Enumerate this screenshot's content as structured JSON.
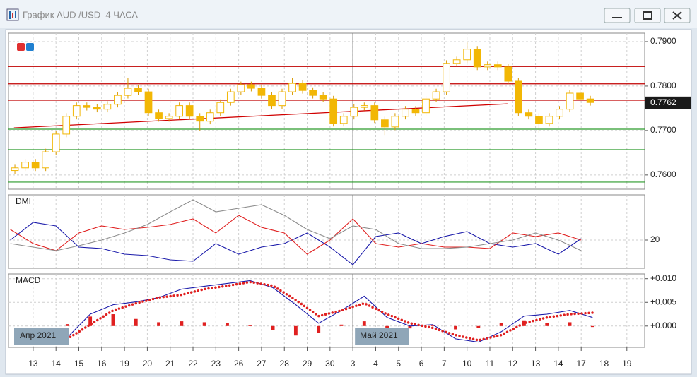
{
  "window": {
    "title": "График AUD /USD  4 ЧАСА"
  },
  "chart_data": [
    {
      "type": "candlestick",
      "xlim": [
        -1.08,
        26.78
      ],
      "ylim": [
        0.7568,
        0.7919
      ],
      "yticks": [
        {
          "value": 0.76,
          "label": "0.7600"
        },
        {
          "value": 0.77,
          "label": "0.7700"
        },
        {
          "value": 0.78,
          "label": "0.7800"
        },
        {
          "value": 0.79,
          "label": "0.7900"
        }
      ],
      "grid": true,
      "color": "#f2b705",
      "x": [
        -0.8,
        -0.35,
        0.1,
        0.55,
        1,
        1.45,
        1.9,
        2.35,
        2.8,
        3.25,
        3.7,
        4.15,
        4.6,
        5.05,
        5.5,
        5.95,
        6.4,
        6.85,
        7.3,
        7.75,
        8.2,
        8.65,
        9.1,
        9.55,
        10,
        10.45,
        10.9,
        11.35,
        11.8,
        12.25,
        12.7,
        13.15,
        13.6,
        14.05,
        14.5,
        14.95,
        15.4,
        15.85,
        16.3,
        16.75,
        17.2,
        17.65,
        18.1,
        18.55,
        19,
        19.45,
        19.9,
        20.35,
        20.8,
        21.25,
        21.7,
        22.15,
        22.6,
        23.05,
        23.5,
        23.95,
        24.4
      ],
      "open": [
        0.761,
        0.7616,
        0.7629,
        0.7616,
        0.7652,
        0.7692,
        0.7732,
        0.7756,
        0.7752,
        0.7748,
        0.7759,
        0.7779,
        0.7795,
        0.7787,
        0.774,
        0.7727,
        0.7732,
        0.7756,
        0.7732,
        0.7721,
        0.774,
        0.7763,
        0.7787,
        0.7803,
        0.7795,
        0.7779,
        0.7756,
        0.7787,
        0.7806,
        0.779,
        0.7779,
        0.7771,
        0.7716,
        0.7732,
        0.7752,
        0.7756,
        0.7724,
        0.7708,
        0.7732,
        0.7748,
        0.774,
        0.7771,
        0.7787,
        0.7851,
        0.7859,
        0.7883,
        0.7843,
        0.7848,
        0.7843,
        0.7811,
        0.774,
        0.7732,
        0.7716,
        0.7732,
        0.7748,
        0.7784,
        0.7771
      ],
      "high": [
        0.7623,
        0.7636,
        0.7636,
        0.7659,
        0.7699,
        0.7739,
        0.7763,
        0.7763,
        0.7759,
        0.7766,
        0.7786,
        0.7818,
        0.7802,
        0.7794,
        0.7747,
        0.7739,
        0.7763,
        0.7763,
        0.7739,
        0.7747,
        0.777,
        0.7794,
        0.781,
        0.781,
        0.7802,
        0.7786,
        0.7794,
        0.7818,
        0.7813,
        0.7797,
        0.7786,
        0.7778,
        0.7739,
        0.7759,
        0.7763,
        0.7763,
        0.7731,
        0.7739,
        0.7755,
        0.7755,
        0.7778,
        0.7794,
        0.7858,
        0.7866,
        0.7898,
        0.789,
        0.7855,
        0.7855,
        0.785,
        0.7818,
        0.7747,
        0.7739,
        0.7739,
        0.7755,
        0.7791,
        0.7791,
        0.7778
      ],
      "low": [
        0.7603,
        0.7609,
        0.7609,
        0.7609,
        0.7645,
        0.7685,
        0.7725,
        0.7745,
        0.7741,
        0.7741,
        0.7752,
        0.7772,
        0.778,
        0.7733,
        0.772,
        0.772,
        0.7725,
        0.7725,
        0.77,
        0.7714,
        0.7733,
        0.7756,
        0.778,
        0.7788,
        0.7772,
        0.7749,
        0.7749,
        0.778,
        0.7783,
        0.7772,
        0.7764,
        0.7709,
        0.7709,
        0.7725,
        0.7745,
        0.7717,
        0.769,
        0.7701,
        0.7725,
        0.7733,
        0.7733,
        0.7764,
        0.778,
        0.7844,
        0.7852,
        0.7836,
        0.7836,
        0.7836,
        0.7804,
        0.7733,
        0.7725,
        0.7695,
        0.7709,
        0.7725,
        0.7741,
        0.7764,
        0.7756
      ],
      "close": [
        0.7616,
        0.7629,
        0.7616,
        0.7652,
        0.7692,
        0.7732,
        0.7756,
        0.7752,
        0.7748,
        0.7759,
        0.7779,
        0.7795,
        0.7787,
        0.774,
        0.7727,
        0.7732,
        0.7756,
        0.7732,
        0.7721,
        0.774,
        0.7763,
        0.7787,
        0.7803,
        0.7795,
        0.7779,
        0.7756,
        0.7787,
        0.7806,
        0.779,
        0.7779,
        0.7771,
        0.7716,
        0.7732,
        0.7752,
        0.7756,
        0.7724,
        0.7708,
        0.7732,
        0.7748,
        0.774,
        0.7771,
        0.7787,
        0.7851,
        0.7859,
        0.7883,
        0.7843,
        0.7848,
        0.7843,
        0.7811,
        0.774,
        0.7732,
        0.7716,
        0.7732,
        0.7748,
        0.7784,
        0.7771,
        0.7763
      ],
      "hlines": [
        {
          "value": 0.7844,
          "color": "#c00000"
        },
        {
          "value": 0.7805,
          "color": "#c00000"
        },
        {
          "value": 0.7768,
          "color": "#c00000"
        },
        {
          "value": 0.7703,
          "color": "#2a9a2a"
        },
        {
          "value": 0.7657,
          "color": "#2a9a2a"
        },
        {
          "value": 0.7584,
          "color": "#2a9a2a"
        }
      ],
      "trendline": {
        "x": [
          -0.84,
          20.77
        ],
        "y": [
          0.7706,
          0.776
        ],
        "color": "#d00000"
      },
      "last_price": 0.7762
    },
    {
      "type": "line",
      "title": "DMI",
      "xlim": [
        -1.08,
        26.78
      ],
      "ylim": [
        0,
        52
      ],
      "yticks": [
        20
      ],
      "grid": true,
      "x": [
        -1,
        0,
        1,
        2,
        3,
        4,
        5,
        6,
        7,
        8,
        9,
        10,
        11,
        12,
        13,
        14,
        15,
        16,
        17,
        18,
        19,
        20,
        21,
        22,
        23,
        24
      ],
      "series": [
        {
          "color": "#1a1aaa",
          "values": [
            20,
            32.5,
            30,
            15,
            14,
            10,
            9,
            6,
            5,
            17.5,
            10,
            15,
            17.5,
            25,
            15,
            2.5,
            22.5,
            25,
            17.5,
            22.5,
            26,
            17.5,
            15,
            17.5,
            10,
            21
          ]
        },
        {
          "color": "#e02020",
          "values": [
            27.5,
            17.5,
            12.5,
            25,
            30,
            27.5,
            29,
            31,
            35,
            25,
            37.5,
            29,
            25,
            10,
            20,
            35,
            17.5,
            15,
            17.5,
            15,
            15,
            14,
            25,
            22.5,
            25,
            20
          ]
        },
        {
          "color": "#8c8c8c",
          "values": [
            17.5,
            15,
            12.5,
            16,
            20,
            25,
            31,
            40,
            48.5,
            40,
            42.5,
            45,
            37.5,
            27.5,
            21,
            30,
            27.5,
            17.5,
            14,
            14,
            15,
            17.5,
            20,
            25,
            20,
            12.5
          ]
        }
      ]
    },
    {
      "type": "macd",
      "title": "MACD",
      "xlim": [
        -1.08,
        26.78
      ],
      "ylim": [
        -0.0045,
        0.011
      ],
      "yticks": [
        {
          "value": 0,
          "label": "+0.000"
        },
        {
          "value": 0.005,
          "label": "+0.005"
        },
        {
          "value": 0.01,
          "label": "+0.010"
        }
      ],
      "grid": true,
      "xticks": [
        {
          "value": 0,
          "label": "13"
        },
        {
          "value": 1,
          "label": "14"
        },
        {
          "value": 2,
          "label": "15"
        },
        {
          "value": 3,
          "label": "16"
        },
        {
          "value": 4,
          "label": "19"
        },
        {
          "value": 5,
          "label": "20"
        },
        {
          "value": 6,
          "label": "21"
        },
        {
          "value": 7,
          "label": "22"
        },
        {
          "value": 8,
          "label": "23"
        },
        {
          "value": 9,
          "label": "26"
        },
        {
          "value": 10,
          "label": "27"
        },
        {
          "value": 11,
          "label": "28"
        },
        {
          "value": 12,
          "label": "29"
        },
        {
          "value": 13,
          "label": "30"
        },
        {
          "value": 14,
          "label": "3"
        },
        {
          "value": 15,
          "label": "4"
        },
        {
          "value": 16,
          "label": "5"
        },
        {
          "value": 17,
          "label": "6"
        },
        {
          "value": 18,
          "label": "7"
        },
        {
          "value": 19,
          "label": "10"
        },
        {
          "value": 20,
          "label": "11"
        },
        {
          "value": 21,
          "label": "12"
        },
        {
          "value": 22,
          "label": "13"
        },
        {
          "value": 23,
          "label": "14"
        },
        {
          "value": 24,
          "label": "17"
        },
        {
          "value": 25,
          "label": "18"
        },
        {
          "value": 26,
          "label": "19"
        }
      ],
      "first_month": "Апр 2021",
      "month_breaks": [
        {
          "x": 14,
          "label": "Май 2021"
        }
      ],
      "x": [
        1.5,
        2.5,
        3.5,
        4.5,
        5.5,
        6.5,
        7.5,
        8.5,
        9.5,
        10.5,
        11.5,
        12.5,
        13.5,
        14.5,
        15.5,
        16.5,
        17.5,
        18.5,
        19.5,
        20.5,
        21.5,
        22.5,
        23.5,
        24.5
      ],
      "histogram_color": "#e02020",
      "histogram": [
        0.0004,
        0.002,
        0.0025,
        0.0015,
        0.0008,
        0.001,
        0.0008,
        0.0006,
        0.0002,
        -0.0008,
        -0.002,
        -0.0015,
        0.0003,
        0.001,
        -0.0008,
        -0.0005,
        0.0002,
        -0.0007,
        -0.0004,
        0.0007,
        0.0012,
        0.0007,
        0.0008,
        -0.0002
      ],
      "series": [
        {
          "color": "#1a1aaa",
          "values": [
            -0.0024,
            0.0025,
            0.0045,
            0.0051,
            0.006,
            0.0078,
            0.0084,
            0.009,
            0.0096,
            0.0081,
            0.0045,
            0.0006,
            0.0033,
            0.0063,
            0.0018,
            0,
            0.0003,
            -0.0027,
            -0.0034,
            -0.0012,
            0.0021,
            0.0025,
            0.0033,
            0.0018
          ]
        },
        {
          "color": "#e02020",
          "dotted": true,
          "values": [
            -0.0027,
            0.0003,
            0.0033,
            0.0048,
            0.006,
            0.0066,
            0.0078,
            0.0085,
            0.0093,
            0.0085,
            0.0055,
            0.0021,
            0.0033,
            0.0048,
            0.0025,
            0.0006,
            -0.0004,
            -0.0019,
            -0.003,
            -0.0019,
            0.0006,
            0.0018,
            0.0025,
            0.0028
          ]
        }
      ]
    }
  ]
}
